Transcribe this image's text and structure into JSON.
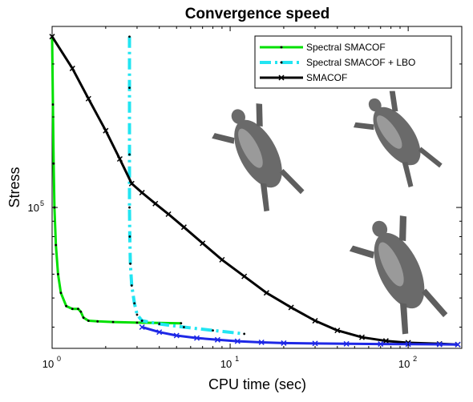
{
  "chart_data": {
    "type": "line",
    "title": "Convergence speed",
    "xlabel": "CPU time (sec)",
    "ylabel": "Stress",
    "xscale": "log",
    "yscale": "log",
    "xlim": [
      1,
      200
    ],
    "ylim": [
      34000,
      400000
    ],
    "x_ticks": [
      {
        "value": 1,
        "base": "10",
        "exp": "0"
      },
      {
        "value": 10,
        "base": "10",
        "exp": "1"
      },
      {
        "value": 100,
        "base": "10",
        "exp": "2"
      }
    ],
    "y_ticks": [
      {
        "value": 100000,
        "base": "10",
        "exp": "5"
      }
    ],
    "grid": false,
    "legend_position": "top-right",
    "series": [
      {
        "name": "Spectral SMACOF",
        "color": "#00e000",
        "style": "solid",
        "marker": "dot",
        "x": [
          1.0,
          1.01,
          1.02,
          1.03,
          1.05,
          1.08,
          1.12,
          1.2,
          1.3,
          1.4,
          1.45,
          1.5,
          1.6,
          1.8,
          2.2,
          3.0,
          4.0,
          5.3
        ],
        "y": [
          370000,
          220000,
          140000,
          100000,
          75000,
          60000,
          52000,
          47000,
          46000,
          46000,
          45000,
          43000,
          42000,
          41800,
          41600,
          41400,
          41300,
          41200
        ]
      },
      {
        "name": "Spectral SMACOF + LBO",
        "color": "#22e5f2",
        "style": "dashdot",
        "marker": "dot",
        "x": [
          2.72,
          2.72,
          2.72,
          2.72,
          2.73,
          2.75,
          2.8,
          2.9,
          3.0,
          3.2,
          4.0,
          5.5,
          8.0,
          12.0
        ],
        "y": [
          370000,
          250000,
          150000,
          100000,
          80000,
          65000,
          55000,
          48000,
          44000,
          42000,
          41000,
          40000,
          39000,
          38000
        ]
      },
      {
        "name": "SMACOF",
        "color": "#000000",
        "style": "solid",
        "marker": "x",
        "x": [
          1.0,
          1.3,
          1.6,
          2.0,
          2.4,
          2.8,
          3.2,
          3.8,
          4.5,
          5.5,
          7.0,
          9.0,
          12.0,
          16.0,
          22.0,
          30.0,
          40.0,
          55.0,
          75.0,
          100.0,
          150.0,
          190.0
        ],
        "y": [
          370000,
          290000,
          230000,
          180000,
          145000,
          120000,
          112000,
          103000,
          95000,
          86000,
          76000,
          67000,
          59000,
          52000,
          46500,
          42000,
          39000,
          37000,
          36000,
          35500,
          35200,
          35000
        ]
      },
      {
        "name": "",
        "color": "#1e28e6",
        "style": "solid",
        "marker": "x",
        "x": [
          3.2,
          4.0,
          5.0,
          6.5,
          8.5,
          11.0,
          15.0,
          20.0,
          30.0,
          45.0,
          70.0,
          100.0,
          150.0,
          190.0
        ],
        "y": [
          40000,
          38500,
          37500,
          36800,
          36300,
          35900,
          35600,
          35400,
          35300,
          35200,
          35150,
          35100,
          35050,
          35000
        ]
      }
    ]
  }
}
